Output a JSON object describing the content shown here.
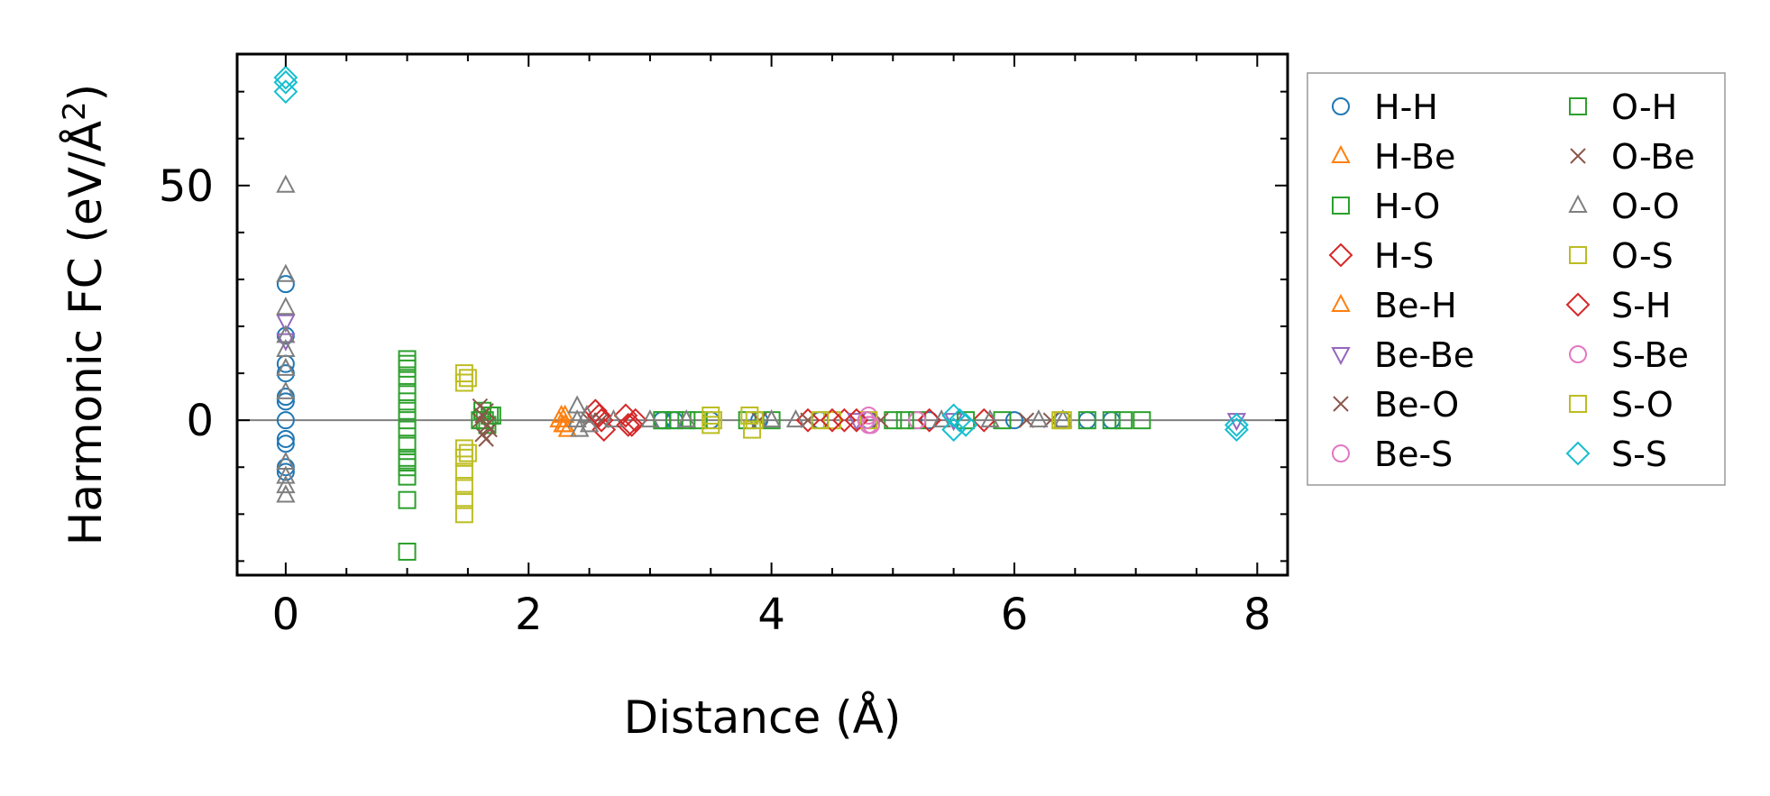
{
  "chart_data": {
    "type": "scatter",
    "title": "",
    "xlabel": "Distance (Å)",
    "ylabel_main": "Harmonic FC (eV/Å",
    "ylabel_sup": "2",
    "ylabel_end": ")",
    "xlim": [
      -0.4,
      8.25
    ],
    "ylim": [
      -33,
      78
    ],
    "xticks": [
      0,
      2,
      4,
      6,
      8
    ],
    "xtick_labels": [
      "0",
      "2",
      "4",
      "6",
      "8"
    ],
    "yticks": [
      0,
      50
    ],
    "ytick_labels": [
      "0",
      "50"
    ],
    "legend_position": "outside-right",
    "series": [
      {
        "name": "H-H",
        "marker": "circle",
        "color": "#1f77b4",
        "points": [
          [
            0,
            29
          ],
          [
            0,
            18
          ],
          [
            0,
            12
          ],
          [
            0,
            10
          ],
          [
            0,
            5
          ],
          [
            0,
            4
          ],
          [
            0,
            0
          ],
          [
            0,
            -4
          ],
          [
            0,
            -5
          ],
          [
            0,
            -10
          ],
          [
            0,
            -11
          ],
          [
            3.1,
            0
          ],
          [
            3.2,
            0
          ],
          [
            3.5,
            0
          ],
          [
            3.9,
            0
          ],
          [
            4.4,
            0
          ],
          [
            4.8,
            0
          ],
          [
            5.3,
            0
          ],
          [
            6.0,
            0
          ],
          [
            6.4,
            0
          ],
          [
            6.6,
            0
          ],
          [
            6.8,
            0
          ]
        ]
      },
      {
        "name": "H-Be",
        "marker": "triangle-up",
        "color": "#ff7f0e",
        "points": [
          [
            2.28,
            -1
          ],
          [
            2.3,
            1
          ],
          [
            2.32,
            -2
          ],
          [
            2.25,
            0
          ]
        ]
      },
      {
        "name": "H-O",
        "marker": "square",
        "color": "#2ca02c",
        "points": [
          [
            1.0,
            13
          ],
          [
            1.0,
            11
          ],
          [
            1.0,
            9
          ],
          [
            1.0,
            6
          ],
          [
            1.0,
            4
          ],
          [
            1.0,
            2
          ],
          [
            1.0,
            0
          ],
          [
            1.0,
            -2
          ],
          [
            1.0,
            -5
          ],
          [
            1.0,
            -8
          ],
          [
            1.0,
            -10
          ],
          [
            1.0,
            -12
          ],
          [
            1.0,
            -17
          ],
          [
            1.0,
            -28
          ],
          [
            1.62,
            2
          ],
          [
            1.64,
            0
          ],
          [
            1.66,
            -1
          ],
          [
            1.68,
            1
          ],
          [
            3.1,
            0
          ],
          [
            3.2,
            0
          ],
          [
            3.4,
            0
          ],
          [
            3.8,
            0
          ],
          [
            4.0,
            0
          ],
          [
            5.0,
            0
          ],
          [
            5.2,
            0
          ],
          [
            5.9,
            0
          ],
          [
            6.6,
            0
          ],
          [
            6.8,
            0
          ],
          [
            7.05,
            0
          ]
        ]
      },
      {
        "name": "H-S",
        "marker": "diamond",
        "color": "#d62728",
        "points": [
          [
            2.55,
            2
          ],
          [
            2.6,
            0
          ],
          [
            2.62,
            -2
          ],
          [
            2.8,
            1
          ],
          [
            2.85,
            -1
          ],
          [
            2.88,
            0
          ],
          [
            4.3,
            0
          ],
          [
            4.6,
            0
          ],
          [
            5.3,
            0
          ],
          [
            5.75,
            0
          ]
        ]
      },
      {
        "name": "Be-H",
        "marker": "triangle-up",
        "color": "#ff7f0e",
        "points": [
          [
            2.3,
            -1
          ],
          [
            2.27,
            1
          ]
        ]
      },
      {
        "name": "Be-Be",
        "marker": "triangle-down",
        "color": "#9467bd",
        "points": [
          [
            0,
            21
          ],
          [
            0,
            17
          ],
          [
            4.7,
            0
          ],
          [
            5.5,
            0
          ],
          [
            7.83,
            0
          ]
        ]
      },
      {
        "name": "Be-O",
        "marker": "x",
        "color": "#8c564b",
        "points": [
          [
            1.6,
            3
          ],
          [
            1.6,
            0
          ],
          [
            1.62,
            -3
          ],
          [
            1.65,
            -4
          ],
          [
            1.65,
            2
          ],
          [
            1.68,
            -2
          ],
          [
            2.6,
            0
          ],
          [
            3.9,
            0
          ],
          [
            4.9,
            0
          ],
          [
            6.3,
            0
          ]
        ]
      },
      {
        "name": "Be-S",
        "marker": "circle",
        "color": "#e377c2",
        "points": [
          [
            4.8,
            -1
          ],
          [
            4.8,
            1
          ],
          [
            5.2,
            0
          ]
        ]
      },
      {
        "name": "O-H",
        "marker": "square",
        "color": "#2ca02c",
        "points": [
          [
            1.0,
            12
          ],
          [
            1.0,
            -9
          ],
          [
            1.6,
            0
          ],
          [
            1.7,
            1
          ],
          [
            3.1,
            0
          ],
          [
            3.3,
            0
          ],
          [
            5.1,
            0
          ],
          [
            5.6,
            0
          ],
          [
            6.9,
            0
          ]
        ]
      },
      {
        "name": "O-Be",
        "marker": "x",
        "color": "#8c564b",
        "points": [
          [
            1.62,
            1
          ],
          [
            1.66,
            -1
          ],
          [
            2.5,
            0
          ],
          [
            4.3,
            0
          ],
          [
            6.1,
            0
          ]
        ]
      },
      {
        "name": "O-O",
        "marker": "triangle-up",
        "color": "#7f7f7f",
        "points": [
          [
            0,
            50
          ],
          [
            0,
            31
          ],
          [
            0,
            24
          ],
          [
            0,
            18
          ],
          [
            0,
            15
          ],
          [
            0,
            11
          ],
          [
            0,
            6
          ],
          [
            0,
            -9
          ],
          [
            0,
            -12
          ],
          [
            0,
            -14
          ],
          [
            0,
            -16
          ],
          [
            2.4,
            3
          ],
          [
            2.4,
            0
          ],
          [
            2.42,
            -2
          ],
          [
            2.48,
            1
          ],
          [
            2.5,
            -1
          ],
          [
            2.7,
            0
          ],
          [
            3.0,
            0
          ],
          [
            3.3,
            0
          ],
          [
            4.0,
            0
          ],
          [
            4.2,
            0
          ],
          [
            5.4,
            0
          ],
          [
            5.8,
            0
          ],
          [
            6.2,
            0
          ],
          [
            6.4,
            0
          ]
        ]
      },
      {
        "name": "O-S",
        "marker": "square",
        "color": "#bcbd22",
        "points": [
          [
            1.47,
            10
          ],
          [
            1.47,
            8
          ],
          [
            1.47,
            -6
          ],
          [
            1.47,
            -8
          ],
          [
            1.47,
            -11
          ],
          [
            1.47,
            -14
          ],
          [
            1.47,
            -17
          ],
          [
            1.47,
            -20
          ],
          [
            3.5,
            1
          ],
          [
            3.5,
            -1
          ],
          [
            3.82,
            1
          ],
          [
            3.84,
            -2
          ],
          [
            4.5,
            0
          ],
          [
            4.8,
            0
          ],
          [
            6.4,
            0
          ]
        ]
      },
      {
        "name": "S-H",
        "marker": "diamond",
        "color": "#d62728",
        "points": [
          [
            2.58,
            1
          ],
          [
            2.82,
            -1
          ],
          [
            4.5,
            0
          ],
          [
            4.7,
            0
          ]
        ]
      },
      {
        "name": "S-Be",
        "marker": "circle",
        "color": "#e377c2",
        "points": [
          [
            4.78,
            0
          ],
          [
            4.82,
            -1
          ]
        ]
      },
      {
        "name": "S-O",
        "marker": "square",
        "color": "#bcbd22",
        "points": [
          [
            1.5,
            9
          ],
          [
            1.5,
            -7
          ],
          [
            3.52,
            0
          ],
          [
            3.86,
            0
          ],
          [
            4.4,
            0
          ],
          [
            6.38,
            0
          ]
        ]
      },
      {
        "name": "S-S",
        "marker": "diamond",
        "color": "#17becf",
        "points": [
          [
            0,
            73
          ],
          [
            0,
            72
          ],
          [
            0,
            70
          ],
          [
            5.5,
            1
          ],
          [
            5.5,
            -2
          ],
          [
            5.55,
            0
          ],
          [
            5.6,
            -1
          ],
          [
            7.83,
            -1
          ],
          [
            7.83,
            -2
          ]
        ]
      }
    ],
    "zero_line": {
      "y": 0,
      "color": "#808080"
    }
  }
}
